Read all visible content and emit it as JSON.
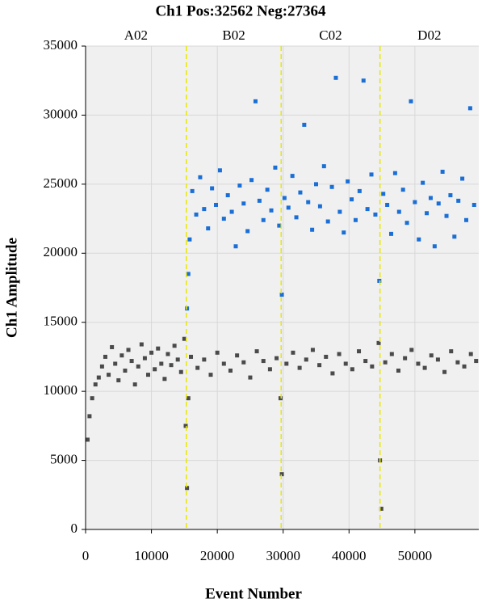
{
  "chart_data": {
    "type": "scatter",
    "title": "Ch1 Pos:32562 Neg:27364",
    "x_label": "Event Number",
    "y_label": "Ch1 Amplitude",
    "wells": [
      "A02",
      "B02",
      "C02",
      "D02"
    ],
    "well_boundaries": [
      15300,
      29700,
      44700
    ],
    "xlim": [
      0,
      59700
    ],
    "ylim": [
      0,
      35000
    ],
    "xticks": [
      0,
      10000,
      20000,
      30000,
      40000,
      50000
    ],
    "yticks": [
      0,
      5000,
      10000,
      15000,
      20000,
      25000,
      30000,
      35000
    ],
    "grid": true,
    "series": [
      {
        "color": "#4a4a4a",
        "x": [
          300,
          600,
          1000,
          1500,
          2000,
          2500,
          3000,
          3500,
          4000,
          4500,
          5000,
          5500,
          6000,
          6500,
          7000,
          7500,
          8000,
          8500,
          9000,
          9500,
          10000,
          10500,
          11000,
          11500,
          12000,
          12500,
          13000,
          13500,
          14000,
          14500,
          15000,
          15200,
          15400,
          15600,
          16000,
          17000,
          18000,
          19000,
          20000,
          21000,
          22000,
          23000,
          24000,
          25000,
          26000,
          27000,
          28000,
          29000,
          29600,
          29800,
          30500,
          31500,
          32500,
          33500,
          34500,
          35500,
          36500,
          37500,
          38500,
          39500,
          40500,
          41500,
          42500,
          43500,
          44500,
          44700,
          44900,
          45500,
          46500,
          47500,
          48500,
          49500,
          50500,
          51500,
          52500,
          53500,
          54500,
          55500,
          56500,
          57500,
          58500,
          59300
        ],
        "values": [
          6500,
          8200,
          9500,
          10500,
          11000,
          11800,
          12500,
          11200,
          13200,
          12000,
          10800,
          12600,
          11500,
          13000,
          12200,
          10500,
          11800,
          13400,
          12400,
          11200,
          12800,
          11600,
          13100,
          12000,
          10900,
          12700,
          11900,
          13300,
          12300,
          11400,
          13800,
          7500,
          3000,
          9500,
          12500,
          11700,
          12300,
          11200,
          12800,
          12000,
          11500,
          12600,
          12100,
          11000,
          12900,
          12200,
          11600,
          12400,
          9500,
          4000,
          12000,
          12800,
          11700,
          12300,
          13000,
          11900,
          12500,
          11300,
          12700,
          12000,
          11600,
          12900,
          12200,
          11800,
          13500,
          5000,
          1500,
          12100,
          12700,
          11500,
          12400,
          13000,
          12000,
          11700,
          12600,
          12300,
          11400,
          12900,
          12100,
          11800,
          12700,
          12200
        ]
      },
      {
        "color": "#1a6fd6",
        "x": [
          15400,
          15600,
          15800,
          16200,
          16800,
          17400,
          18000,
          18600,
          19200,
          19800,
          20400,
          21000,
          21600,
          22200,
          22800,
          23400,
          24000,
          24600,
          25200,
          25800,
          26400,
          27000,
          27600,
          28200,
          28800,
          29400,
          29800,
          30200,
          30800,
          31400,
          32000,
          32600,
          33200,
          33800,
          34400,
          35000,
          35600,
          36200,
          36800,
          37400,
          38000,
          38600,
          39200,
          39800,
          40400,
          41000,
          41600,
          42200,
          42800,
          43400,
          44000,
          44600,
          45200,
          45800,
          46400,
          47000,
          47600,
          48200,
          48800,
          49400,
          50000,
          50600,
          51200,
          51800,
          52400,
          53000,
          53600,
          54200,
          54800,
          55400,
          56000,
          56600,
          57200,
          57800,
          58400,
          59000
        ],
        "values": [
          16000,
          18500,
          21000,
          24500,
          22800,
          25500,
          23200,
          21800,
          24700,
          23500,
          26000,
          22500,
          24200,
          23000,
          20500,
          24900,
          23600,
          21600,
          25300,
          31000,
          23800,
          22400,
          24600,
          23100,
          26200,
          22000,
          17000,
          24000,
          23300,
          25600,
          22600,
          24400,
          29300,
          23700,
          21700,
          25000,
          23400,
          26300,
          22300,
          24800,
          32700,
          23000,
          21500,
          25200,
          23900,
          22400,
          24500,
          32500,
          23200,
          25700,
          22800,
          18000,
          24300,
          23500,
          21400,
          25800,
          23000,
          24600,
          22200,
          31000,
          23700,
          21000,
          25100,
          22900,
          24000,
          20500,
          23600,
          25900,
          22700,
          24200,
          21200,
          23800,
          25400,
          22400,
          30500,
          23500
        ]
      }
    ]
  }
}
